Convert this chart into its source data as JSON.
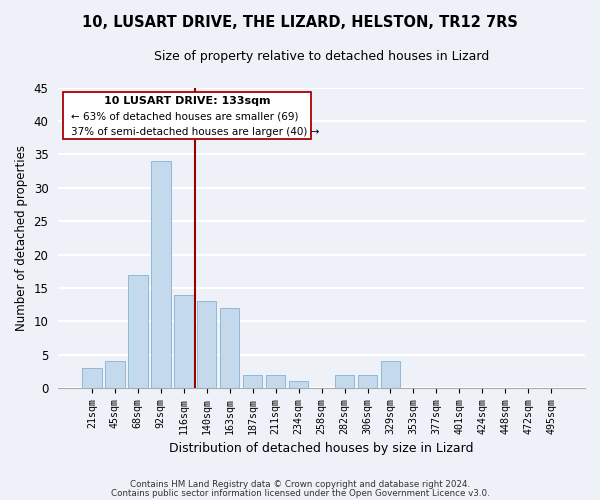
{
  "title": "10, LUSART DRIVE, THE LIZARD, HELSTON, TR12 7RS",
  "subtitle": "Size of property relative to detached houses in Lizard",
  "xlabel": "Distribution of detached houses by size in Lizard",
  "ylabel": "Number of detached properties",
  "bar_labels": [
    "21sqm",
    "45sqm",
    "68sqm",
    "92sqm",
    "116sqm",
    "140sqm",
    "163sqm",
    "187sqm",
    "211sqm",
    "234sqm",
    "258sqm",
    "282sqm",
    "306sqm",
    "329sqm",
    "353sqm",
    "377sqm",
    "401sqm",
    "424sqm",
    "448sqm",
    "472sqm",
    "495sqm"
  ],
  "bar_values": [
    3,
    4,
    17,
    34,
    14,
    13,
    12,
    2,
    2,
    1,
    0,
    2,
    2,
    4,
    0,
    0,
    0,
    0,
    0,
    0,
    0
  ],
  "bar_color": "#c5d9ed",
  "bar_edge_color": "#8fb8d8",
  "ylim": [
    0,
    45
  ],
  "yticks": [
    0,
    5,
    10,
    15,
    20,
    25,
    30,
    35,
    40,
    45
  ],
  "property_line_x": 4.5,
  "property_line_color": "#990000",
  "annotation_title": "10 LUSART DRIVE: 133sqm",
  "annotation_line1": "← 63% of detached houses are smaller (69)",
  "annotation_line2": "37% of semi-detached houses are larger (40) →",
  "footer_line1": "Contains HM Land Registry data © Crown copyright and database right 2024.",
  "footer_line2": "Contains public sector information licensed under the Open Government Licence v3.0.",
  "background_color": "#eef2f8",
  "plot_background_color": "#eef2f8",
  "grid_color": "white"
}
